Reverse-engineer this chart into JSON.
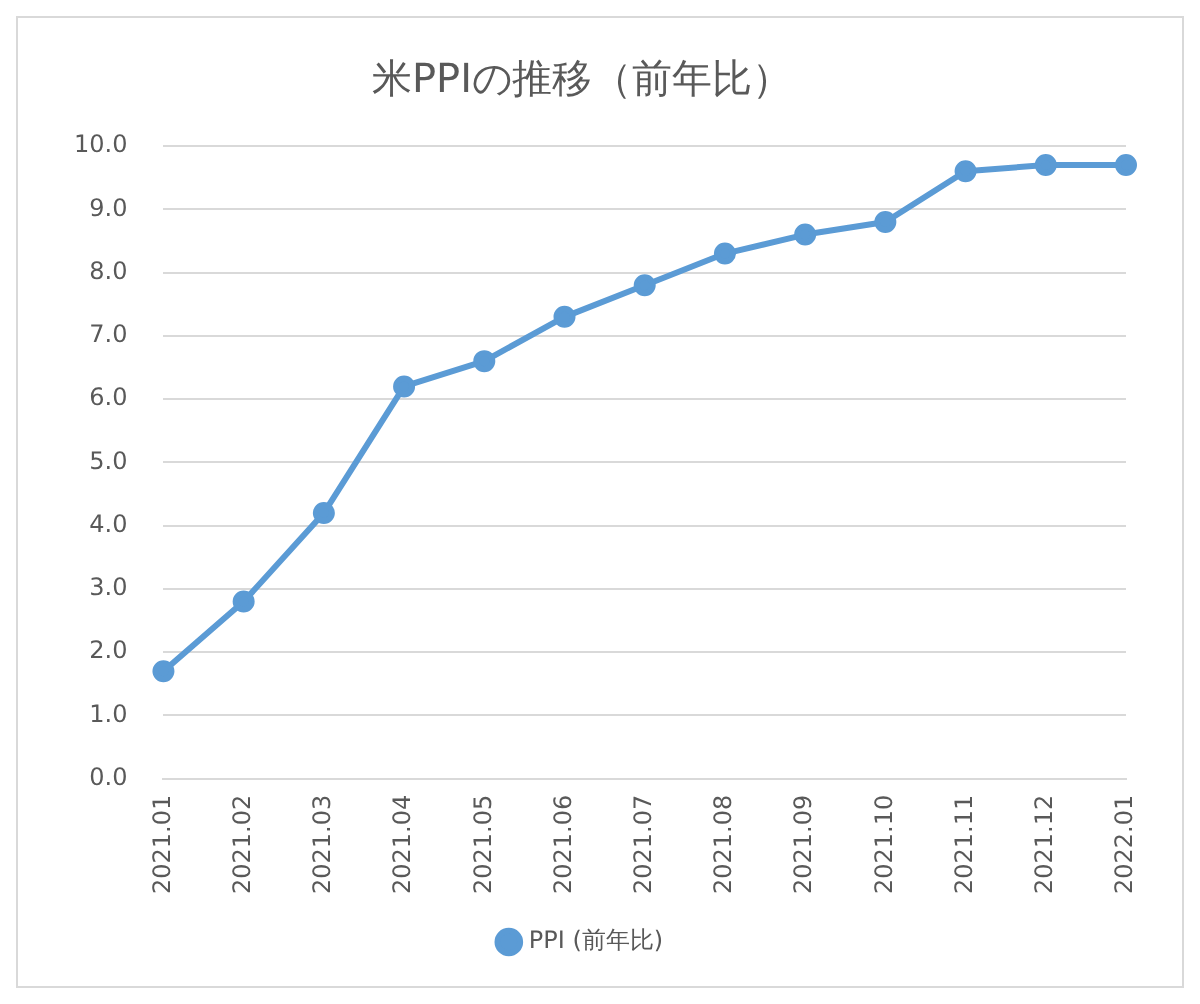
{
  "chart_data": {
    "type": "line",
    "title": "米PPIの推移（前年比）",
    "categories": [
      "2021.01",
      "2021.02",
      "2021.03",
      "2021.04",
      "2021.05",
      "2021.06",
      "2021.07",
      "2021.08",
      "2021.09",
      "2021.10",
      "2021.11",
      "2021.12",
      "2022.01"
    ],
    "series": [
      {
        "name": "PPI (前年比)",
        "color": "#5b9bd5",
        "values": [
          1.7,
          2.8,
          4.2,
          6.2,
          6.6,
          7.3,
          7.8,
          8.3,
          8.6,
          8.8,
          9.6,
          9.7,
          9.7
        ]
      }
    ],
    "ylim": [
      0,
      10
    ],
    "yticks": [
      {
        "value": 0,
        "label": "0.0"
      },
      {
        "value": 1,
        "label": "1.0"
      },
      {
        "value": 2,
        "label": "2.0"
      },
      {
        "value": 3,
        "label": "3.0"
      },
      {
        "value": 4,
        "label": "4.0"
      },
      {
        "value": 5,
        "label": "5.0"
      },
      {
        "value": 6,
        "label": "6.0"
      },
      {
        "value": 7,
        "label": "7.0"
      },
      {
        "value": 8,
        "label": "8.0"
      },
      {
        "value": 9,
        "label": "9.0"
      },
      {
        "value": 10,
        "label": "10.0"
      }
    ],
    "grid": "y",
    "legend": "bottom",
    "marker": "circle",
    "line_style": "solid"
  }
}
